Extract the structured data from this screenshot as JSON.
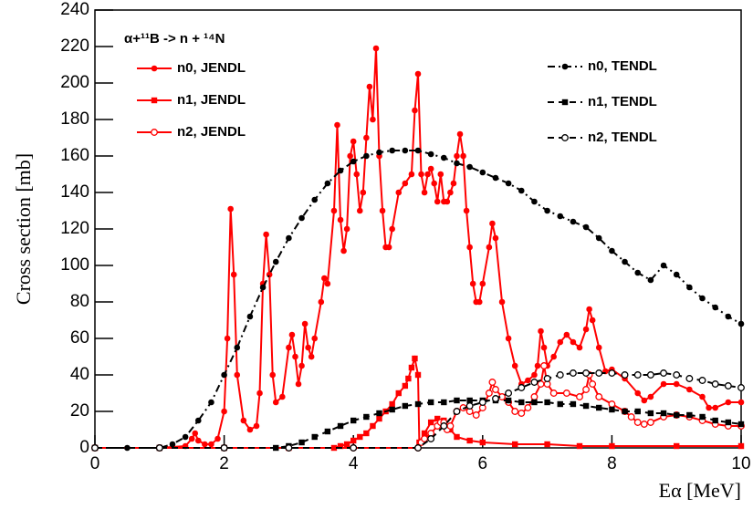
{
  "chart_data": {
    "type": "line",
    "title": "α+¹¹B -> n + ¹⁴N",
    "x_label": "Eα [MeV]",
    "y_label": "Cross section [mb]",
    "xlim": [
      0,
      10
    ],
    "xticks": [
      0,
      2,
      4,
      6,
      8,
      10
    ],
    "ylim": [
      0,
      240
    ],
    "yticks": [
      0,
      20,
      40,
      60,
      80,
      100,
      120,
      140,
      160,
      180,
      200,
      220,
      240
    ],
    "grid": false,
    "series": [
      {
        "name": "n0, JENDL",
        "color": "#ff0000",
        "marker": "circle",
        "line": "solid",
        "legend_column": "left",
        "x": [
          0,
          1.0,
          1.4,
          1.5,
          1.55,
          1.6,
          1.7,
          1.8,
          1.9,
          2.0,
          2.05,
          2.1,
          2.15,
          2.2,
          2.3,
          2.4,
          2.5,
          2.55,
          2.6,
          2.65,
          2.7,
          2.75,
          2.8,
          2.9,
          3.0,
          3.05,
          3.1,
          3.15,
          3.2,
          3.25,
          3.3,
          3.35,
          3.4,
          3.5,
          3.55,
          3.6,
          3.7,
          3.75,
          3.8,
          3.85,
          3.9,
          3.95,
          4.0,
          4.05,
          4.1,
          4.15,
          4.2,
          4.25,
          4.3,
          4.35,
          4.4,
          4.45,
          4.5,
          4.55,
          4.6,
          4.7,
          4.8,
          4.9,
          4.95,
          5.0,
          5.05,
          5.1,
          5.15,
          5.2,
          5.25,
          5.3,
          5.35,
          5.4,
          5.45,
          5.5,
          5.55,
          5.6,
          5.65,
          5.7,
          5.75,
          5.8,
          5.85,
          5.9,
          5.95,
          6.0,
          6.1,
          6.15,
          6.2,
          6.3,
          6.4,
          6.5,
          6.6,
          6.7,
          6.8,
          6.85,
          6.9,
          6.95,
          7.0,
          7.1,
          7.2,
          7.3,
          7.4,
          7.5,
          7.6,
          7.65,
          7.7,
          7.8,
          7.9,
          8.0,
          8.2,
          8.4,
          8.5,
          8.6,
          8.8,
          9.0,
          9.2,
          9.4,
          9.5,
          9.6,
          9.8,
          10
        ],
        "values": [
          0,
          0,
          1,
          5,
          8,
          4,
          2,
          2,
          5,
          20,
          60,
          131,
          95,
          40,
          15,
          10,
          12,
          30,
          90,
          117,
          95,
          40,
          25,
          28,
          55,
          62,
          50,
          35,
          45,
          68,
          55,
          50,
          60,
          80,
          93,
          90,
          130,
          177,
          125,
          108,
          120,
          160,
          168,
          150,
          130,
          140,
          170,
          198,
          180,
          219,
          160,
          130,
          110,
          110,
          120,
          140,
          145,
          150,
          185,
          205,
          150,
          140,
          150,
          153,
          145,
          135,
          150,
          135,
          135,
          140,
          145,
          160,
          172,
          160,
          130,
          110,
          90,
          80,
          80,
          90,
          110,
          123,
          115,
          80,
          60,
          45,
          35,
          37,
          40,
          45,
          64,
          55,
          45,
          50,
          58,
          62,
          58,
          55,
          65,
          76,
          70,
          55,
          42,
          43,
          38,
          30,
          26,
          28,
          35,
          35,
          32,
          28,
          22,
          22,
          25,
          25
        ]
      },
      {
        "name": "n1, JENDL",
        "color": "#ff0000",
        "marker": "square",
        "line": "solid",
        "legend_column": "left",
        "x": [
          0,
          1,
          2,
          3,
          3.7,
          3.8,
          3.9,
          4.0,
          4.1,
          4.2,
          4.3,
          4.4,
          4.5,
          4.6,
          4.7,
          4.8,
          4.85,
          4.9,
          4.95,
          5.0,
          5.02,
          5.1,
          5.2,
          5.3,
          5.4,
          5.5,
          5.6,
          5.8,
          6.0,
          6.5,
          7.0,
          7.5,
          8.0,
          9.0,
          10
        ],
        "values": [
          0,
          0,
          0,
          0,
          0,
          1,
          2,
          4,
          6,
          8,
          12,
          16,
          20,
          24,
          30,
          34,
          38,
          44,
          49,
          40,
          3,
          8,
          14,
          16,
          15,
          10,
          6,
          4,
          3,
          2,
          2,
          1,
          1,
          1,
          1
        ]
      },
      {
        "name": "n2, JENDL",
        "color": "#ff0000",
        "marker": "open-circle",
        "line": "solid",
        "legend_column": "left",
        "x": [
          0,
          1,
          2,
          3,
          4,
          5.0,
          5.05,
          5.1,
          5.2,
          5.3,
          5.35,
          5.4,
          5.45,
          5.5,
          5.6,
          5.7,
          5.8,
          5.9,
          6.0,
          6.1,
          6.15,
          6.2,
          6.3,
          6.4,
          6.5,
          6.6,
          6.7,
          6.8,
          6.9,
          6.95,
          7.0,
          7.1,
          7.3,
          7.5,
          7.6,
          7.65,
          7.7,
          7.8,
          8.0,
          8.2,
          8.3,
          8.4,
          8.5,
          8.6,
          8.8,
          9.0,
          9.2,
          9.4,
          9.6,
          9.8,
          10
        ],
        "values": [
          0,
          0,
          0,
          0,
          0,
          0,
          3,
          5,
          8,
          12,
          14,
          14,
          10,
          12,
          20,
          22,
          20,
          18,
          22,
          30,
          36,
          32,
          28,
          25,
          20,
          19,
          22,
          28,
          35,
          45,
          35,
          30,
          30,
          28,
          32,
          40,
          35,
          28,
          24,
          20,
          17,
          14,
          13,
          14,
          17,
          18,
          17,
          15,
          13,
          12,
          12
        ]
      },
      {
        "name": "n0, TENDL",
        "color": "#000000",
        "marker": "circle",
        "line": "dashdot",
        "legend_column": "right",
        "x": [
          0,
          0.5,
          1.0,
          1.2,
          1.4,
          1.6,
          1.8,
          2.0,
          2.2,
          2.4,
          2.6,
          2.8,
          3.0,
          3.2,
          3.4,
          3.6,
          3.8,
          4.0,
          4.2,
          4.4,
          4.6,
          4.8,
          5.0,
          5.2,
          5.4,
          5.6,
          5.8,
          6.0,
          6.2,
          6.4,
          6.6,
          6.8,
          7.0,
          7.2,
          7.4,
          7.6,
          7.8,
          8.0,
          8.2,
          8.4,
          8.6,
          8.8,
          9.0,
          9.2,
          9.4,
          9.6,
          9.8,
          10
        ],
        "values": [
          0,
          0,
          0,
          2,
          6,
          15,
          25,
          40,
          55,
          72,
          88,
          102,
          115,
          126,
          136,
          145,
          152,
          157,
          160,
          162,
          163,
          163,
          163,
          161,
          159,
          156,
          154,
          151,
          148,
          145,
          141,
          135,
          130,
          127,
          124,
          121,
          115,
          108,
          102,
          96,
          92,
          100,
          95,
          88,
          82,
          77,
          72,
          68
        ]
      },
      {
        "name": "n1, TENDL",
        "color": "#000000",
        "marker": "square",
        "line": "dashed",
        "legend_column": "right",
        "x": [
          0,
          1,
          2,
          2.8,
          3.0,
          3.2,
          3.4,
          3.6,
          3.8,
          4.0,
          4.2,
          4.4,
          4.6,
          4.8,
          5.0,
          5.2,
          5.4,
          5.6,
          5.8,
          6.0,
          6.2,
          6.4,
          6.6,
          6.8,
          7.0,
          7.2,
          7.4,
          7.6,
          7.8,
          8.0,
          8.2,
          8.4,
          8.6,
          8.8,
          9.0,
          9.2,
          9.4,
          9.6,
          9.8,
          10
        ],
        "values": [
          0,
          0,
          0,
          0,
          1,
          3,
          6,
          9,
          12,
          15,
          17,
          19,
          21,
          23,
          24,
          25,
          25,
          26,
          26,
          26,
          26,
          26,
          25,
          25,
          25,
          24,
          24,
          23,
          22,
          21,
          20,
          20,
          19,
          19,
          18,
          18,
          17,
          15,
          14,
          13
        ]
      },
      {
        "name": "n2, TENDL",
        "color": "#000000",
        "marker": "open-circle",
        "line": "dashed",
        "legend_column": "right",
        "x": [
          0,
          1,
          2,
          3,
          4,
          5.0,
          5.2,
          5.4,
          5.6,
          5.8,
          6.0,
          6.2,
          6.4,
          6.6,
          6.8,
          7.0,
          7.2,
          7.4,
          7.6,
          7.8,
          8.0,
          8.2,
          8.4,
          8.6,
          8.8,
          9.0,
          9.2,
          9.4,
          9.6,
          9.8,
          10
        ],
        "values": [
          0,
          0,
          0,
          0,
          0,
          0,
          5,
          12,
          20,
          23,
          25,
          27,
          30,
          33,
          36,
          38,
          40,
          41,
          41,
          41,
          41,
          40,
          40,
          40,
          41,
          40,
          38,
          37,
          35,
          34,
          33
        ]
      }
    ]
  }
}
